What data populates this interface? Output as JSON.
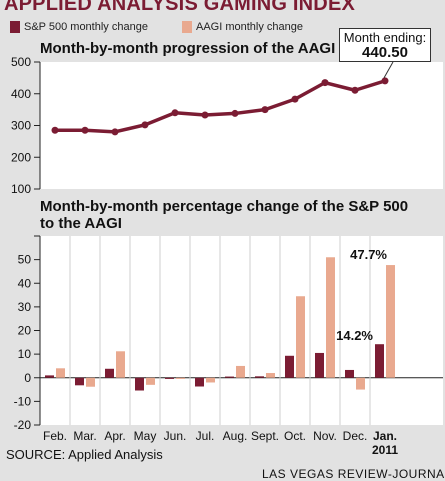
{
  "title": "APPLIED ANALYSIS GAMING INDEX",
  "legend": {
    "sp500": "S&P 500 monthly change",
    "aagi": "AAGI monthly change"
  },
  "colors": {
    "sp500": "#7b1c33",
    "aagi": "#e9a98f",
    "panel": "#ffffff",
    "background": "#e2e2e2"
  },
  "callout": {
    "label": "Month ending:",
    "value": "440.50"
  },
  "source": "SOURCE: Applied Analysis",
  "credit": "LAS VEGAS REVIEW-JOURNAL",
  "chart_data": [
    {
      "type": "line",
      "title": "Month-by-month progression of the AAGI",
      "categories": [
        "Feb.",
        "Mar.",
        "Apr.",
        "May",
        "Jun.",
        "Jul.",
        "Aug.",
        "Sept.",
        "Oct.",
        "Nov.",
        "Dec.",
        "Jan."
      ],
      "series": [
        {
          "values": [
            285,
            285,
            280,
            302,
            340,
            333,
            338,
            350,
            383,
            435,
            411,
            440.5
          ]
        }
      ],
      "yticks": [
        "500",
        "400",
        "300",
        "200",
        "100"
      ],
      "ylim": [
        100,
        500
      ],
      "grid": false
    },
    {
      "type": "bar",
      "title_line1": "Month-by-month percentage change of the S&P 500",
      "title_line2": "to the AAGI",
      "categories": [
        "Feb.",
        "Mar.",
        "Apr.",
        "May",
        "Jun.",
        "Jul.",
        "Aug.",
        "Sept.",
        "Oct.",
        "Nov.",
        "Dec.",
        "Jan."
      ],
      "category_sublabel": "2011",
      "series": [
        {
          "name": "S&P 500 monthly change",
          "values": [
            1.0,
            -3.2,
            3.8,
            -5.4,
            -0.5,
            -3.7,
            0.5,
            0.6,
            9.3,
            10.5,
            3.3,
            14.2
          ]
        },
        {
          "name": "AAGI monthly change",
          "values": [
            4.0,
            -3.8,
            11.2,
            -3.0,
            -0.5,
            -2.0,
            5.0,
            2.0,
            34.5,
            51.0,
            -5.0,
            47.7
          ]
        }
      ],
      "annotations": [
        {
          "text": "14.2%",
          "category": "Jan.",
          "series": 0
        },
        {
          "text": "47.7%",
          "category": "Jan.",
          "series": 1
        }
      ],
      "yticks": [
        "50",
        "40",
        "30",
        "20",
        "10",
        "0",
        "-10",
        "-20"
      ],
      "ylim": [
        -20,
        60
      ],
      "grid": false
    }
  ]
}
